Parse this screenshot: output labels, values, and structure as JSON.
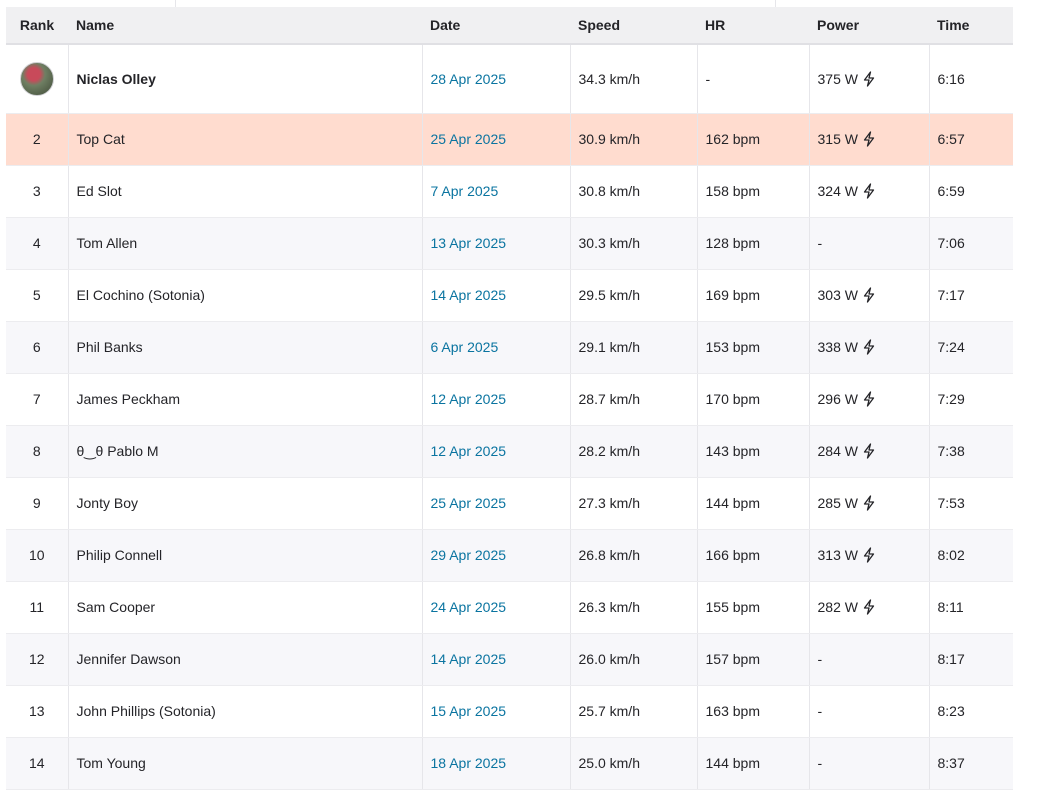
{
  "headers": {
    "rank": "Rank",
    "name": "Name",
    "date": "Date",
    "speed": "Speed",
    "hr": "HR",
    "power": "Power",
    "time": "Time"
  },
  "rows": [
    {
      "rank": "",
      "avatar": true,
      "name": "Niclas Olley",
      "date": "28 Apr 2025",
      "speed": "34.3 km/h",
      "hr": "-",
      "power": "375 W",
      "power_icon": "bolt-icon",
      "time": "6:16"
    },
    {
      "rank": "2",
      "name": "Top Cat",
      "date": "25 Apr 2025",
      "speed": "30.9 km/h",
      "hr": "162 bpm",
      "power": "315 W",
      "power_icon": "bolt-icon",
      "time": "6:57",
      "highlighted": true
    },
    {
      "rank": "3",
      "name": "Ed Slot",
      "date": "7 Apr 2025",
      "speed": "30.8 km/h",
      "hr": "158 bpm",
      "power": "324 W",
      "power_icon": "bolt-icon",
      "time": "6:59"
    },
    {
      "rank": "4",
      "name": "Tom Allen",
      "date": "13 Apr 2025",
      "speed": "30.3 km/h",
      "hr": "128 bpm",
      "power": "-",
      "time": "7:06"
    },
    {
      "rank": "5",
      "name": "El Cochino (Sotonia)",
      "date": "14 Apr 2025",
      "speed": "29.5 km/h",
      "hr": "169 bpm",
      "power": "303 W",
      "power_icon": "bolt-icon",
      "time": "7:17"
    },
    {
      "rank": "6",
      "name": "Phil Banks",
      "date": "6 Apr 2025",
      "speed": "29.1 km/h",
      "hr": "153 bpm",
      "power": "338 W",
      "power_icon": "bolt-icon",
      "time": "7:24"
    },
    {
      "rank": "7",
      "name": "James Peckham",
      "date": "12 Apr 2025",
      "speed": "28.7 km/h",
      "hr": "170 bpm",
      "power": "296 W",
      "power_icon": "bolt-icon",
      "time": "7:29"
    },
    {
      "rank": "8",
      "name": "θ‿θ Pablo M",
      "date": "12 Apr 2025",
      "speed": "28.2 km/h",
      "hr": "143 bpm",
      "power": "284 W",
      "power_icon": "bolt-icon",
      "time": "7:38"
    },
    {
      "rank": "9",
      "name": "Jonty Boy",
      "date": "25 Apr 2025",
      "speed": "27.3 km/h",
      "hr": "144 bpm",
      "power": "285 W",
      "power_icon": "bolt-icon",
      "time": "7:53"
    },
    {
      "rank": "10",
      "name": "Philip Connell",
      "date": "29 Apr 2025",
      "speed": "26.8 km/h",
      "hr": "166 bpm",
      "power": "313 W",
      "power_icon": "bolt-icon",
      "time": "8:02"
    },
    {
      "rank": "11",
      "name": "Sam Cooper",
      "date": "24 Apr 2025",
      "speed": "26.3 km/h",
      "hr": "155 bpm",
      "power": "282 W",
      "power_icon": "bolt-icon",
      "time": "8:11"
    },
    {
      "rank": "12",
      "name": "Jennifer Dawson",
      "date": "14 Apr 2025",
      "speed": "26.0 km/h",
      "hr": "157 bpm",
      "power": "-",
      "time": "8:17"
    },
    {
      "rank": "13",
      "name": "John Phillips (Sotonia)",
      "date": "15 Apr 2025",
      "speed": "25.7 km/h",
      "hr": "163 bpm",
      "power": "-",
      "time": "8:23"
    },
    {
      "rank": "14",
      "name": "Tom Young",
      "date": "18 Apr 2025",
      "speed": "25.0 km/h",
      "hr": "144 bpm",
      "power": "-",
      "time": "8:37"
    }
  ],
  "colors": {
    "date_link": "#0a74a0",
    "highlight_row": "#ffdccf",
    "alt_row": "#f7f7fa",
    "header_bg": "#f0f0f2"
  }
}
